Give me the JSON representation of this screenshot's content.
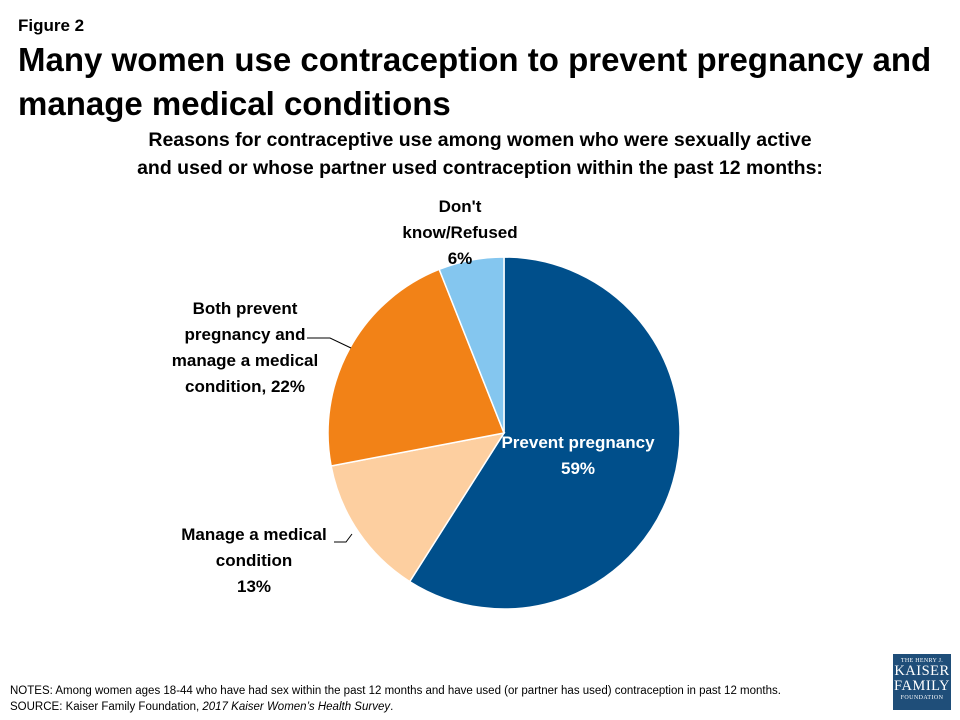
{
  "header": {
    "figure_label": "Figure 2",
    "title_line1": "Many women use contraception to prevent pregnancy and",
    "title_line2": "manage medical conditions"
  },
  "chart_data": {
    "type": "pie",
    "subtitle_line1": "Reasons for contraceptive use among women who were sexually active",
    "subtitle_line2": "and used or whose partner used contraception within the past 12 months:",
    "slices": [
      {
        "label_lines": [
          "Prevent pregnancy",
          "59%"
        ],
        "value": 59,
        "color": "#004f8b"
      },
      {
        "label_lines": [
          "Manage a medical",
          "condition",
          "13%"
        ],
        "value": 13,
        "color": "#fdcfa0"
      },
      {
        "label_lines": [
          "Both prevent",
          "pregnancy and",
          "manage a medical",
          "condition, 22%"
        ],
        "value": 22,
        "color": "#f28217"
      },
      {
        "label_lines": [
          "Don't",
          "know/Refused",
          "6%"
        ],
        "value": 6,
        "color": "#84c6ef"
      }
    ]
  },
  "footer": {
    "notes": "NOTES:  Among women  ages 18-44 who have had sex within the past 12 months and have used (or partner has used) contraception in past 12 months.",
    "source_prefix": "SOURCE:  Kaiser Family Foundation, ",
    "source_title": "2017 Kaiser Women’s Health Survey",
    "source_suffix": "."
  },
  "logo": {
    "top": "THE HENRY J.",
    "line1": "KAISER",
    "line2": "FAMILY",
    "bottom": "FOUNDATION"
  }
}
